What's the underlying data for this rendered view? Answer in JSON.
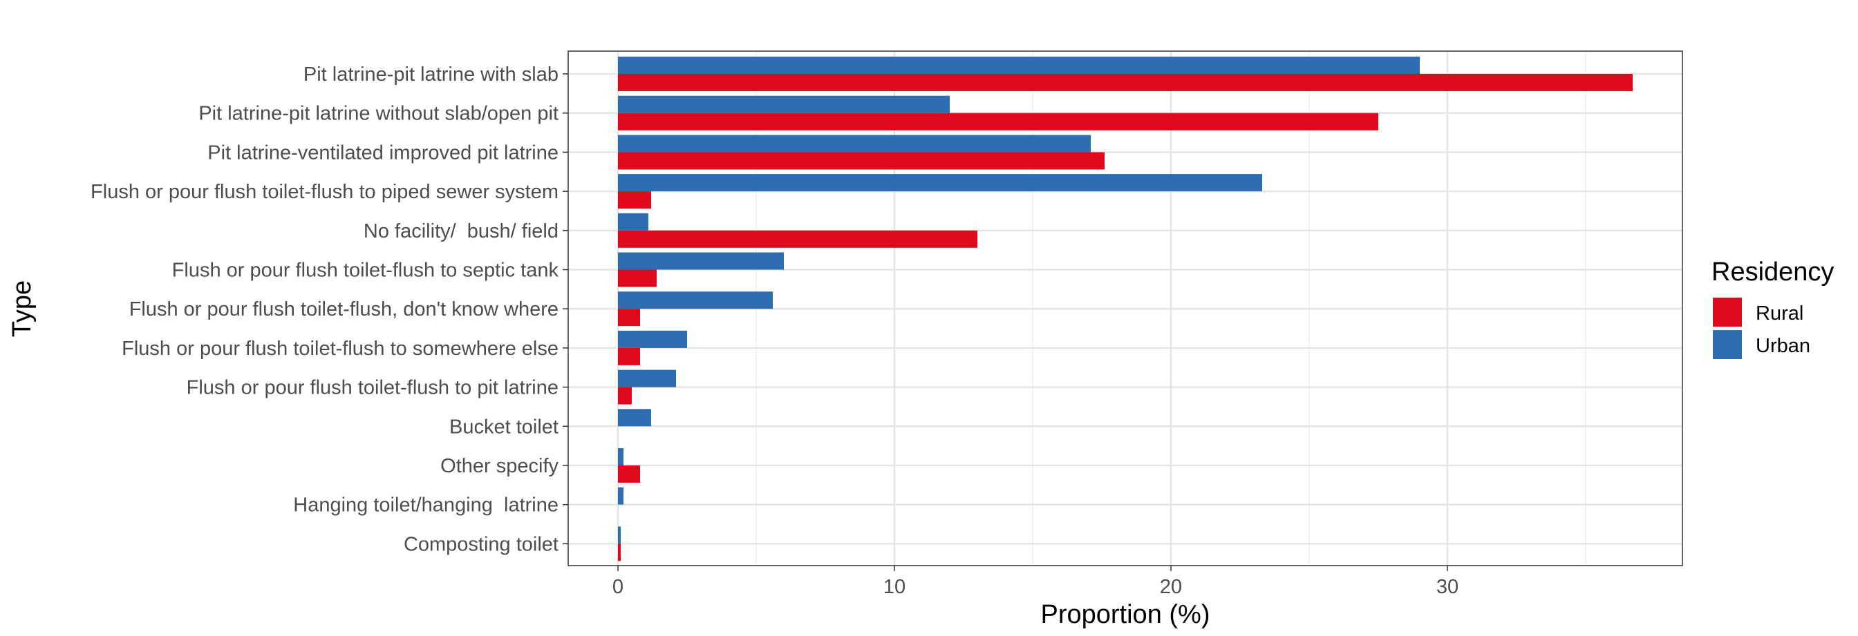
{
  "chart_data": {
    "type": "bar",
    "orientation": "horizontal",
    "categories": [
      "Pit latrine-pit latrine with slab",
      "Pit latrine-pit latrine without slab/open pit",
      "Pit latrine-ventilated improved pit latrine",
      "Flush or pour flush toilet-flush to piped sewer system",
      "No facility/  bush/ field",
      "Flush or pour flush toilet-flush to septic tank",
      "Flush or pour flush toilet-flush, don't know where",
      "Flush or pour flush toilet-flush to somewhere else",
      "Flush or pour flush toilet-flush to pit latrine",
      "Bucket toilet",
      "Other specify",
      "Hanging toilet/hanging  latrine",
      "Composting toilet"
    ],
    "series": [
      {
        "name": "Urban",
        "color": "#2f6db0",
        "values": [
          29.0,
          12.0,
          17.1,
          23.3,
          1.1,
          6.0,
          5.6,
          2.5,
          2.1,
          1.2,
          0.2,
          0.2,
          0.1
        ]
      },
      {
        "name": "Rural",
        "color": "#e0081c",
        "values": [
          36.7,
          27.5,
          17.6,
          1.2,
          13.0,
          1.4,
          0.8,
          0.8,
          0.5,
          0.0,
          0.8,
          0.0,
          0.1
        ]
      }
    ],
    "xlabel": "Proportion (%)",
    "ylabel": "Type",
    "xlim": [
      -1.8,
      38.5
    ],
    "xticks": [
      0,
      10,
      20,
      30
    ],
    "grid": true,
    "legend": {
      "title": "Residency",
      "placement": "right",
      "entries": [
        {
          "label": "Rural",
          "color": "#e0081c"
        },
        {
          "label": "Urban",
          "color": "#2f6db0"
        }
      ]
    }
  }
}
